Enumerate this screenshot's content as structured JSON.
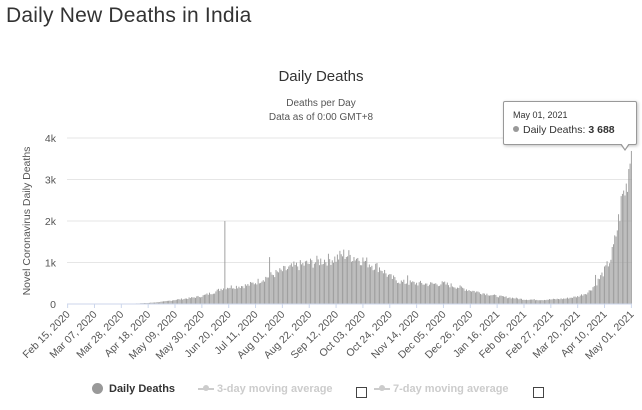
{
  "page": {
    "title": "Daily New Deaths in India"
  },
  "chart_data": {
    "type": "bar",
    "title": "Daily Deaths",
    "subtitle_line1": "Deaths per Day",
    "subtitle_line2": "Data as of 0:00 GMT+8",
    "ylabel": "Novel Coronavirus Daily Deaths",
    "xlabel": "",
    "ylim": [
      0,
      4000
    ],
    "yticks": [
      0,
      1000,
      2000,
      3000,
      4000
    ],
    "ytick_labels": [
      "0",
      "1k",
      "2k",
      "3k",
      "4k"
    ],
    "x_start": "2020-02-15",
    "x_end": "2021-05-01",
    "xtick_labels": [
      "Feb 15, 2020",
      "Mar 07, 2020",
      "Mar 28, 2020",
      "Apr 18, 2020",
      "May 09, 2020",
      "May 30, 2020",
      "Jun 20, 2020",
      "Jul 11, 2020",
      "Aug 01, 2020",
      "Aug 22, 2020",
      "Sep 12, 2020",
      "Oct 03, 2020",
      "Oct 24, 2020",
      "Nov 14, 2020",
      "Dec 05, 2020",
      "Dec 26, 2020",
      "Jan 16, 2021",
      "Feb 06, 2021",
      "Feb 27, 2021",
      "Mar 20, 2021",
      "Apr 10, 2021",
      "May 01, 2021"
    ],
    "series": [
      {
        "name": "Daily Deaths",
        "color": "#999999",
        "anchors": [
          [
            "2020-02-15",
            0
          ],
          [
            "2020-03-20",
            1
          ],
          [
            "2020-04-05",
            10
          ],
          [
            "2020-04-18",
            25
          ],
          [
            "2020-05-01",
            60
          ],
          [
            "2020-05-09",
            100
          ],
          [
            "2020-05-20",
            140
          ],
          [
            "2020-05-30",
            190
          ],
          [
            "2020-06-10",
            300
          ],
          [
            "2020-06-16",
            400
          ],
          [
            "2020-06-25",
            420
          ],
          [
            "2020-07-05",
            450
          ],
          [
            "2020-07-11",
            520
          ],
          [
            "2020-07-20",
            650
          ],
          [
            "2020-08-01",
            800
          ],
          [
            "2020-08-10",
            900
          ],
          [
            "2020-08-22",
            980
          ],
          [
            "2020-09-01",
            1050
          ],
          [
            "2020-09-12",
            1100
          ],
          [
            "2020-09-18",
            1200
          ],
          [
            "2020-09-28",
            1120
          ],
          [
            "2020-10-03",
            1050
          ],
          [
            "2020-10-10",
            950
          ],
          [
            "2020-10-17",
            860
          ],
          [
            "2020-10-24",
            650
          ],
          [
            "2020-11-03",
            520
          ],
          [
            "2020-11-14",
            500
          ],
          [
            "2020-11-24",
            480
          ],
          [
            "2020-12-05",
            490
          ],
          [
            "2020-12-15",
            420
          ],
          [
            "2020-12-26",
            330
          ],
          [
            "2021-01-05",
            260
          ],
          [
            "2021-01-16",
            190
          ],
          [
            "2021-01-30",
            140
          ],
          [
            "2021-02-06",
            110
          ],
          [
            "2021-02-20",
            100
          ],
          [
            "2021-02-27",
            110
          ],
          [
            "2021-03-10",
            130
          ],
          [
            "2021-03-20",
            180
          ],
          [
            "2021-03-28",
            280
          ],
          [
            "2021-04-03",
            470
          ],
          [
            "2021-04-10",
            800
          ],
          [
            "2021-04-15",
            1100
          ],
          [
            "2021-04-18",
            1500
          ],
          [
            "2021-04-21",
            2000
          ],
          [
            "2021-04-24",
            2600
          ],
          [
            "2021-04-27",
            2800
          ],
          [
            "2021-04-29",
            3300
          ],
          [
            "2021-04-30",
            3500
          ],
          [
            "2021-05-01",
            3688
          ]
        ],
        "spikes": [
          [
            "2020-06-17",
            2000
          ],
          [
            "2020-07-22",
            1130
          ],
          [
            "2020-11-07",
            690
          ],
          [
            "2021-04-03",
            700
          ]
        ]
      },
      {
        "name": "3-day moving average",
        "visible": false
      },
      {
        "name": "7-day moving average",
        "visible": false
      }
    ],
    "tooltip": {
      "date": "May 01, 2021",
      "series": "Daily Deaths",
      "value": "3 688"
    }
  },
  "legend": {
    "items": [
      {
        "label": "Daily Deaths"
      },
      {
        "label": "3-day moving average"
      },
      {
        "label": "7-day moving average"
      }
    ]
  }
}
